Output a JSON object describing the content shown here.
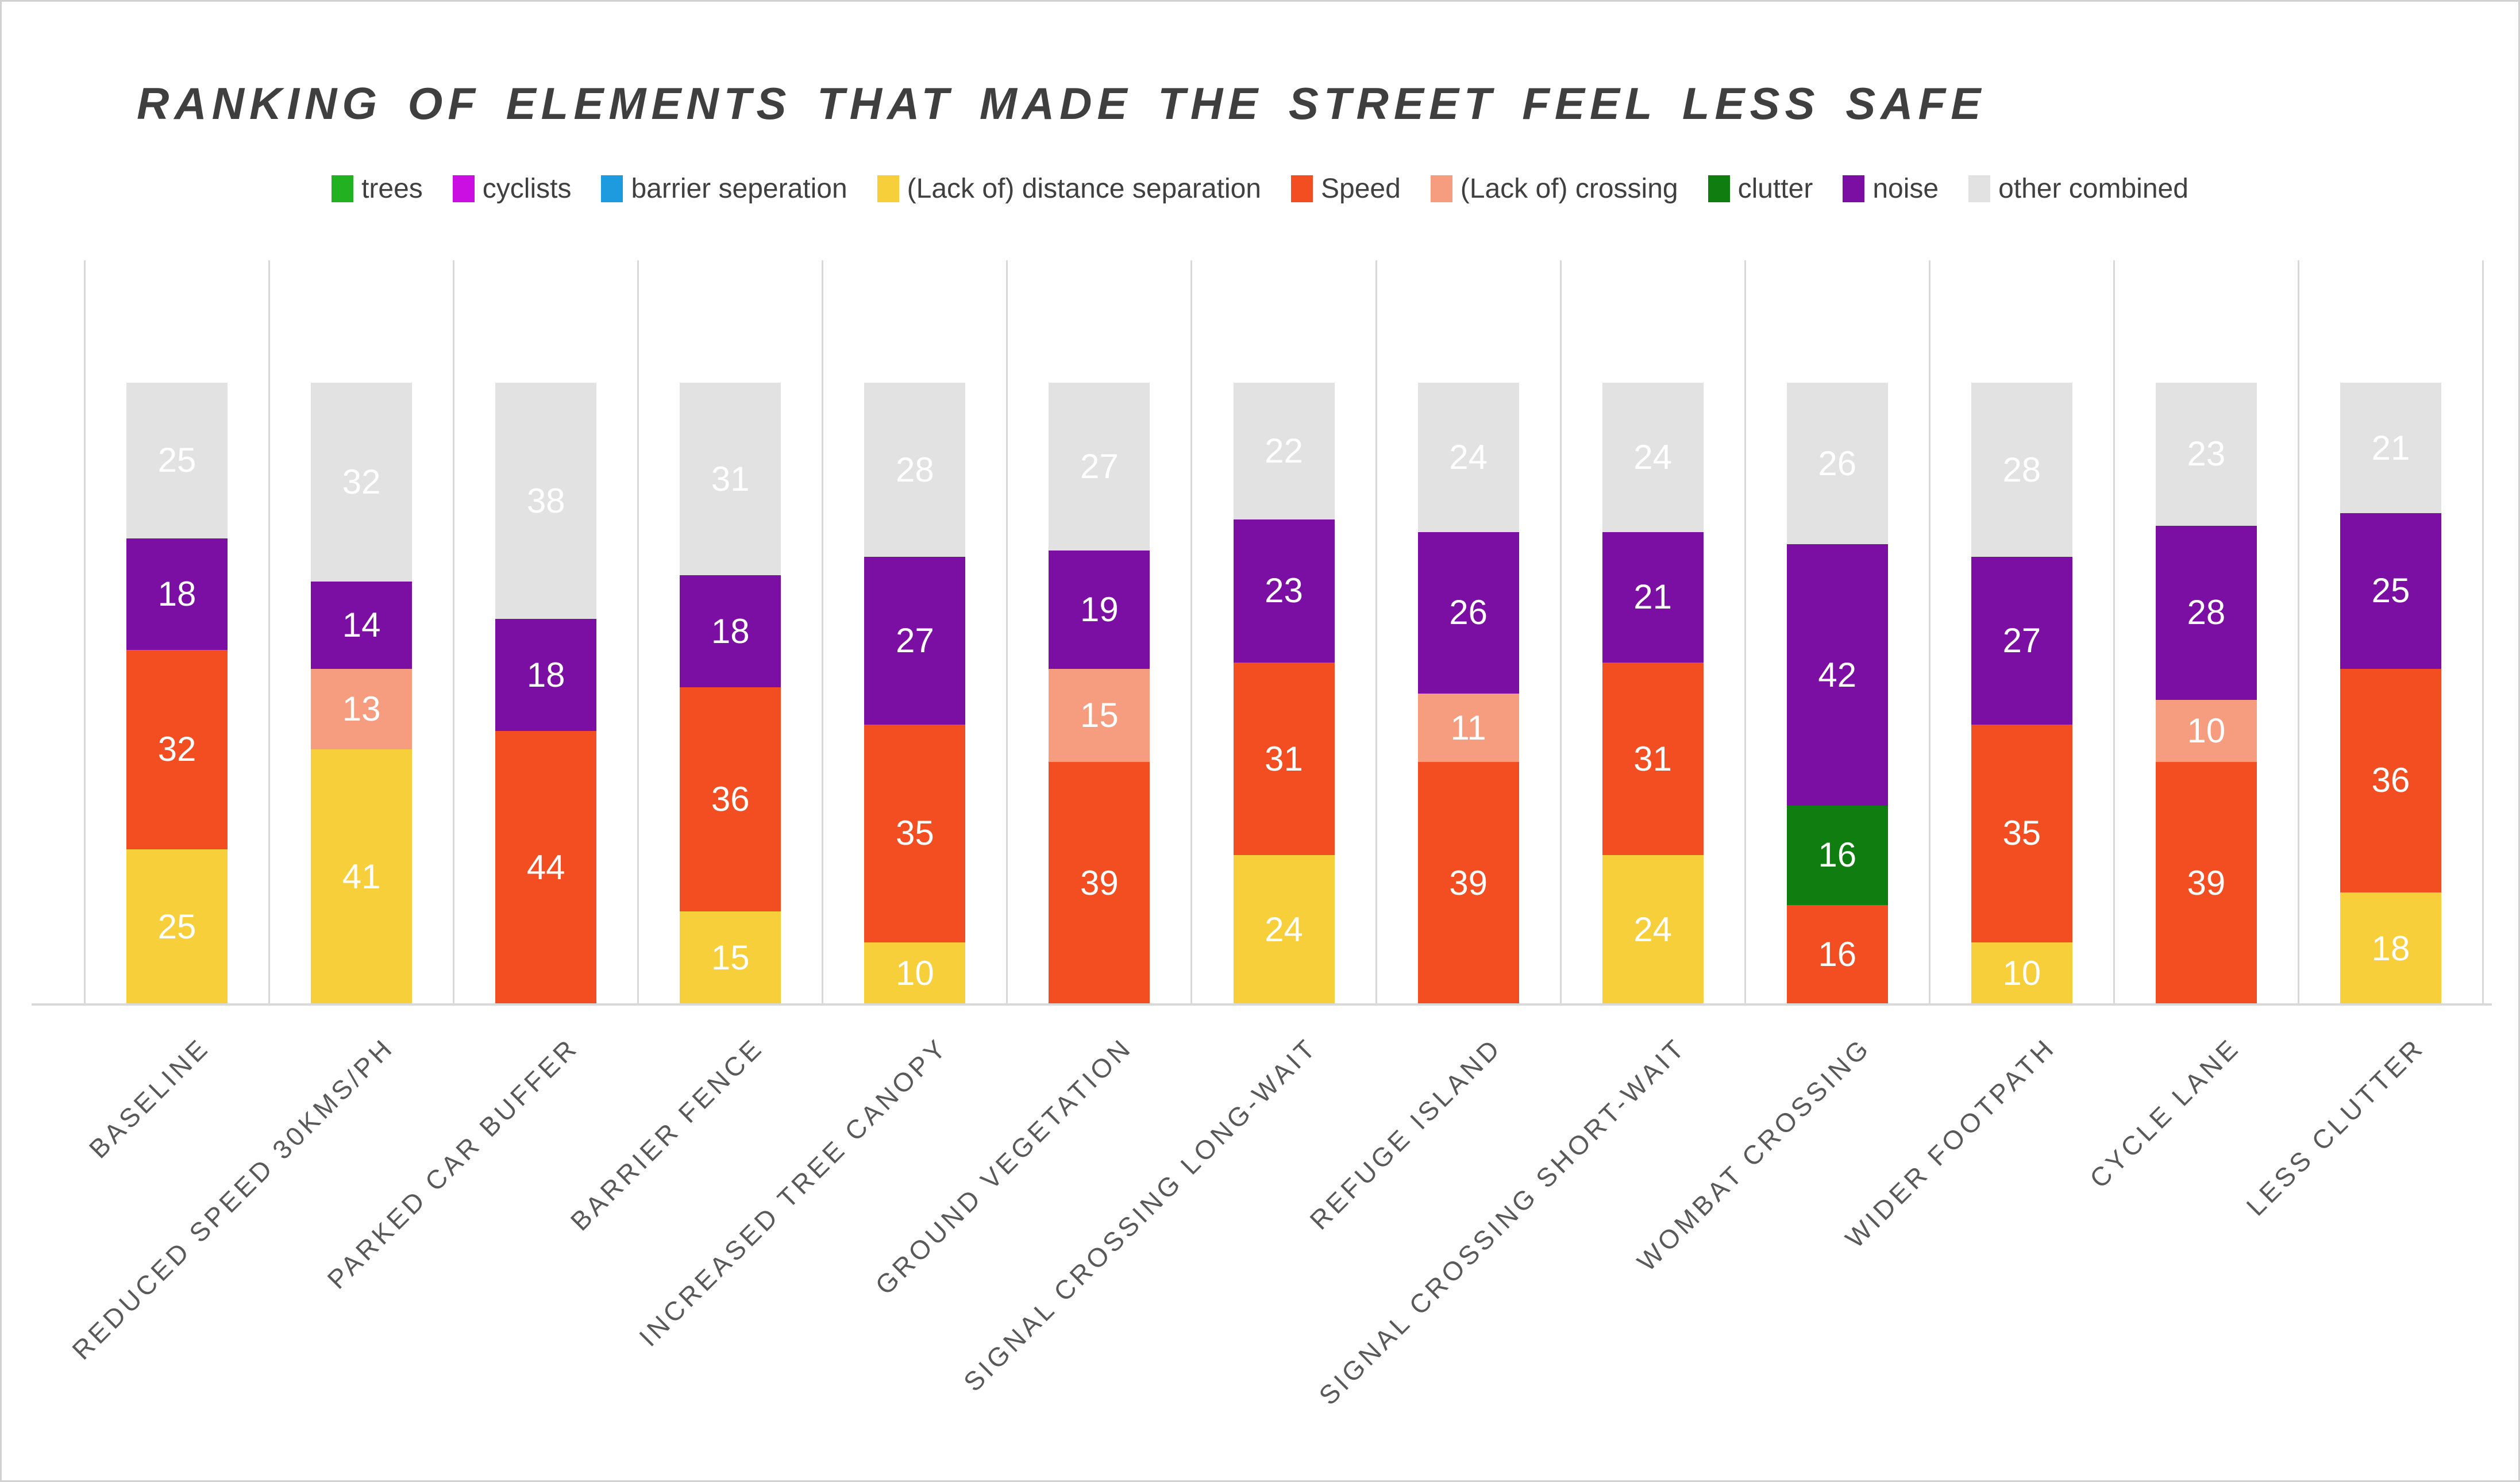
{
  "title": "RANKING OF ELEMENTS THAT MADE THE STREET FEEL LESS SAFE",
  "colors": {
    "trees": "#21b121",
    "cyclists": "#cb0fe2",
    "barrier_seperation": "#1e9bdf",
    "lack_of_distance_separation": "#f7cf3a",
    "speed": "#f24e22",
    "lack_of_crossing": "#f69d80",
    "clutter": "#0f7d0f",
    "noise": "#7b0fa3",
    "other_combined": "#e2e2e2",
    "value_label": "#ffffff",
    "gridline": "#d9d9d9",
    "title_text": "#3f3f3f",
    "axis_label_text": "#595959"
  },
  "legend": {
    "position": "top-center",
    "items": [
      {
        "label": "trees",
        "color": "#21b121"
      },
      {
        "label": "cyclists",
        "color": "#cb0fe2"
      },
      {
        "label": "barrier seperation",
        "color": "#1e9bdf"
      },
      {
        "label": "(Lack of) distance separation",
        "color": "#f7cf3a"
      },
      {
        "label": "Speed",
        "color": "#f24e22"
      },
      {
        "label": "(Lack of) crossing",
        "color": "#f69d80"
      },
      {
        "label": "clutter",
        "color": "#0f7d0f"
      },
      {
        "label": "noise",
        "color": "#7b0fa3"
      },
      {
        "label": "other combined",
        "color": "#e2e2e2"
      }
    ]
  },
  "chart_data": {
    "type": "bar",
    "stacked": true,
    "title": "RANKING OF ELEMENTS THAT MADE THE STREET FEEL LESS SAFE",
    "xlabel": "",
    "ylabel": "",
    "ylim": [
      0,
      120
    ],
    "bar_total_each": 100,
    "gridlines": "vertical category separators only, no horizontal gridlines, no y-axis tick labels",
    "legend_position": "top",
    "value_labels": "white numbers centered in each non-zero segment",
    "categories": [
      "BASELINE",
      "REDUCED SPEED 30KMS/PH",
      "PARKED CAR BUFFER",
      "BARRIER FENCE",
      "INCREASED TREE CANOPY",
      "GROUND VEGETATION",
      "SIGNAL CROSSING LONG-WAIT",
      "REFUGE ISLAND",
      "SIGNAL CROSSING SHORT-WAIT",
      "WOMBAT CROSSING",
      "WIDER FOOTPATH",
      "CYCLE LANE",
      "LESS CLUTTER"
    ],
    "series": [
      {
        "name": "trees",
        "color": "#21b121",
        "values": [
          0,
          0,
          0,
          0,
          0,
          0,
          0,
          0,
          0,
          0,
          0,
          0,
          0
        ]
      },
      {
        "name": "cyclists",
        "color": "#cb0fe2",
        "values": [
          0,
          0,
          0,
          0,
          0,
          0,
          0,
          0,
          0,
          0,
          0,
          0,
          0
        ]
      },
      {
        "name": "barrier seperation",
        "color": "#1e9bdf",
        "values": [
          0,
          0,
          0,
          0,
          0,
          0,
          0,
          0,
          0,
          0,
          0,
          0,
          0
        ]
      },
      {
        "name": "(Lack of) distance separation",
        "color": "#f7cf3a",
        "values": [
          25,
          41,
          0,
          15,
          10,
          0,
          24,
          0,
          24,
          0,
          10,
          0,
          18
        ]
      },
      {
        "name": "Speed",
        "color": "#f24e22",
        "values": [
          32,
          0,
          44,
          36,
          35,
          39,
          31,
          39,
          31,
          16,
          35,
          39,
          36
        ]
      },
      {
        "name": "(Lack of) crossing",
        "color": "#f69d80",
        "values": [
          0,
          13,
          0,
          0,
          0,
          15,
          0,
          11,
          0,
          0,
          0,
          10,
          0
        ]
      },
      {
        "name": "clutter",
        "color": "#0f7d0f",
        "values": [
          0,
          0,
          0,
          0,
          0,
          0,
          0,
          0,
          0,
          16,
          0,
          0,
          0
        ]
      },
      {
        "name": "noise",
        "color": "#7b0fa3",
        "values": [
          18,
          14,
          18,
          18,
          27,
          19,
          23,
          26,
          21,
          42,
          27,
          28,
          25
        ]
      },
      {
        "name": "other combined",
        "color": "#e2e2e2",
        "values": [
          25,
          32,
          38,
          31,
          28,
          27,
          22,
          24,
          24,
          26,
          28,
          23,
          21
        ]
      }
    ]
  }
}
